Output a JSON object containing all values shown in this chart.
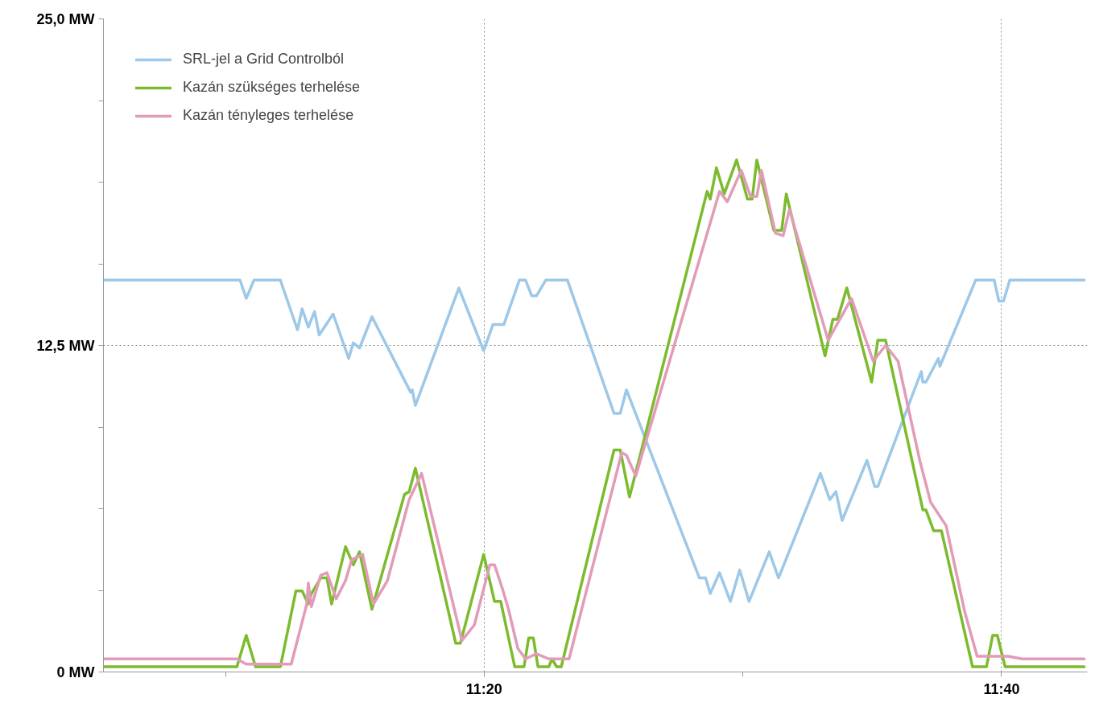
{
  "chart_data": {
    "type": "line",
    "xlim": [
      11.088,
      11.722
    ],
    "ylim": [
      0,
      25
    ],
    "xticks": [
      {
        "value": 11.1667,
        "label": null
      },
      {
        "value": 11.3333,
        "label": "11:20"
      },
      {
        "value": 11.5,
        "label": null
      },
      {
        "value": 11.6667,
        "label": "11:40"
      }
    ],
    "yticks": [
      {
        "value": 0,
        "label": "0 MW"
      },
      {
        "value": 3.125,
        "label": null
      },
      {
        "value": 6.25,
        "label": null
      },
      {
        "value": 9.375,
        "label": null
      },
      {
        "value": 12.5,
        "label": "12,5 MW"
      },
      {
        "value": 15.625,
        "label": null
      },
      {
        "value": 18.75,
        "label": null
      },
      {
        "value": 21.875,
        "label": null
      },
      {
        "value": 25,
        "label": "25,0 MW"
      }
    ],
    "grid": true,
    "legend": "top left",
    "marker": "none",
    "line_style": "solid",
    "series": [
      {
        "name": "SRL-jel a Grid Controlból",
        "color": "#9dc8e8",
        "x": [
          11.088,
          11.176,
          11.18,
          11.185,
          11.202,
          11.213,
          11.216,
          11.22,
          11.224,
          11.227,
          11.236,
          11.246,
          11.249,
          11.253,
          11.261,
          11.286,
          11.287,
          11.289,
          11.317,
          11.333,
          11.339,
          11.346,
          11.356,
          11.36,
          11.364,
          11.367,
          11.373,
          11.387,
          11.417,
          11.421,
          11.425,
          11.472,
          11.476,
          11.479,
          11.485,
          11.492,
          11.498,
          11.504,
          11.517,
          11.523,
          11.55,
          11.556,
          11.56,
          11.564,
          11.58,
          11.585,
          11.587,
          11.615,
          11.616,
          11.618,
          11.626,
          11.627,
          11.65,
          11.662,
          11.665,
          11.668,
          11.672,
          11.72
        ],
        "values": [
          15.0,
          15.0,
          14.3,
          15.0,
          15.0,
          13.1,
          13.9,
          13.2,
          13.8,
          12.9,
          13.7,
          12.0,
          12.6,
          12.4,
          13.6,
          10.7,
          10.8,
          10.2,
          14.7,
          12.3,
          13.3,
          13.3,
          15.0,
          15.0,
          14.4,
          14.4,
          15.0,
          15.0,
          9.9,
          9.9,
          10.8,
          3.6,
          3.6,
          3.0,
          3.8,
          2.7,
          3.9,
          2.7,
          4.6,
          3.6,
          7.6,
          6.6,
          6.9,
          5.8,
          8.1,
          7.1,
          7.1,
          11.5,
          11.1,
          11.1,
          12.0,
          11.7,
          15.0,
          15.0,
          14.2,
          14.2,
          15.0,
          15.0
        ]
      },
      {
        "name": "Kazán szükséges terhelése",
        "color": "#7dbb2e",
        "x": [
          11.088,
          11.174,
          11.18,
          11.186,
          11.202,
          11.212,
          11.216,
          11.22,
          11.222,
          11.228,
          11.232,
          11.235,
          11.244,
          11.249,
          11.253,
          11.261,
          11.282,
          11.285,
          11.289,
          11.315,
          11.318,
          11.333,
          11.34,
          11.344,
          11.353,
          11.359,
          11.362,
          11.365,
          11.368,
          11.375,
          11.377,
          11.38,
          11.383,
          11.417,
          11.421,
          11.427,
          11.477,
          11.479,
          11.483,
          11.488,
          11.496,
          11.503,
          11.506,
          11.509,
          11.52,
          11.525,
          11.528,
          11.553,
          11.558,
          11.561,
          11.567,
          11.583,
          11.587,
          11.592,
          11.616,
          11.618,
          11.623,
          11.628,
          11.648,
          11.657,
          11.661,
          11.664,
          11.669,
          11.72
        ],
        "values": [
          0.2,
          0.2,
          1.4,
          0.2,
          0.2,
          3.1,
          3.1,
          2.6,
          3.0,
          3.6,
          3.6,
          2.6,
          4.8,
          4.1,
          4.6,
          2.4,
          6.8,
          6.9,
          7.8,
          1.1,
          1.1,
          4.5,
          2.7,
          2.7,
          0.2,
          0.2,
          1.3,
          1.3,
          0.2,
          0.2,
          0.5,
          0.2,
          0.2,
          8.5,
          8.5,
          6.7,
          18.4,
          18.1,
          19.3,
          18.3,
          19.6,
          18.1,
          18.1,
          19.6,
          16.9,
          16.9,
          18.3,
          12.1,
          13.5,
          13.5,
          14.7,
          11.1,
          12.7,
          12.7,
          6.2,
          6.2,
          5.4,
          5.4,
          0.2,
          0.2,
          1.4,
          1.4,
          0.2,
          0.2
        ]
      },
      {
        "name": "Kazán tényleges terhelése",
        "color": "#e29bb8",
        "x": [
          11.088,
          11.174,
          11.18,
          11.209,
          11.219,
          11.22,
          11.222,
          11.228,
          11.232,
          11.238,
          11.244,
          11.248,
          11.255,
          11.262,
          11.271,
          11.285,
          11.293,
          11.319,
          11.327,
          11.337,
          11.34,
          11.345,
          11.349,
          11.355,
          11.36,
          11.367,
          11.375,
          11.388,
          11.422,
          11.425,
          11.431,
          11.485,
          11.49,
          11.499,
          11.505,
          11.509,
          11.512,
          11.521,
          11.526,
          11.53,
          11.555,
          11.57,
          11.584,
          11.592,
          11.6,
          11.614,
          11.621,
          11.631,
          11.643,
          11.651,
          11.671,
          11.68,
          11.72
        ],
        "values": [
          0.5,
          0.5,
          0.3,
          0.3,
          2.6,
          3.4,
          2.5,
          3.7,
          3.8,
          2.8,
          3.5,
          4.3,
          4.5,
          2.6,
          3.5,
          6.6,
          7.6,
          1.2,
          1.8,
          4.1,
          4.1,
          3.2,
          2.4,
          0.9,
          0.5,
          0.7,
          0.5,
          0.5,
          8.4,
          8.3,
          7.5,
          18.4,
          18.0,
          19.2,
          18.2,
          18.2,
          19.2,
          16.8,
          16.7,
          17.7,
          12.7,
          14.3,
          11.9,
          12.5,
          11.9,
          8.1,
          6.5,
          5.6,
          2.3,
          0.6,
          0.6,
          0.5,
          0.5
        ]
      }
    ]
  }
}
